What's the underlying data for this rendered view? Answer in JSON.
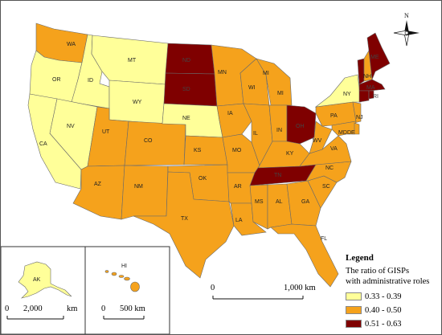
{
  "colors": {
    "low": "#ffff99",
    "mid": "#f5a21c",
    "high": "#7f0000",
    "border": "#6a6a6a"
  },
  "legend": {
    "title": "Legend",
    "subtitle_line1": "The ratio of GISPs",
    "subtitle_line2": "with administrative roles",
    "items": [
      {
        "label": "0.33 - 0.39",
        "class": "low"
      },
      {
        "label": "0.40 - 0.50",
        "class": "mid"
      },
      {
        "label": "0.51 - 0.63",
        "class": "high"
      }
    ]
  },
  "north_arrow": {
    "label": "N"
  },
  "scales": {
    "main": {
      "start": "0",
      "end": "1,000 km"
    },
    "alaska": {
      "start": "0",
      "end": "2,000",
      "unit": "km"
    },
    "hawaii": {
      "start": "0",
      "end": "500 km"
    }
  },
  "states": [
    {
      "abbr": "WA",
      "class": "mid"
    },
    {
      "abbr": "OR",
      "class": "low"
    },
    {
      "abbr": "CA",
      "class": "low"
    },
    {
      "abbr": "ID",
      "class": "low"
    },
    {
      "abbr": "NV",
      "class": "low"
    },
    {
      "abbr": "MT",
      "class": "low"
    },
    {
      "abbr": "WY",
      "class": "low"
    },
    {
      "abbr": "UT",
      "class": "mid"
    },
    {
      "abbr": "CO",
      "class": "mid"
    },
    {
      "abbr": "AZ",
      "class": "mid"
    },
    {
      "abbr": "NM",
      "class": "mid"
    },
    {
      "abbr": "ND",
      "class": "high"
    },
    {
      "abbr": "SD",
      "class": "high"
    },
    {
      "abbr": "NE",
      "class": "low"
    },
    {
      "abbr": "KS",
      "class": "mid"
    },
    {
      "abbr": "OK",
      "class": "mid"
    },
    {
      "abbr": "TX",
      "class": "mid"
    },
    {
      "abbr": "MN",
      "class": "mid"
    },
    {
      "abbr": "IA",
      "class": "mid"
    },
    {
      "abbr": "MO",
      "class": "mid"
    },
    {
      "abbr": "AR",
      "class": "mid"
    },
    {
      "abbr": "LA",
      "class": "mid"
    },
    {
      "abbr": "WI",
      "class": "mid"
    },
    {
      "abbr": "IL",
      "class": "mid"
    },
    {
      "abbr": "MI",
      "class": "mid"
    },
    {
      "abbr": "IN",
      "class": "mid"
    },
    {
      "abbr": "OH",
      "class": "high"
    },
    {
      "abbr": "KY",
      "class": "mid"
    },
    {
      "abbr": "TN",
      "class": "high"
    },
    {
      "abbr": "MS",
      "class": "mid"
    },
    {
      "abbr": "AL",
      "class": "mid"
    },
    {
      "abbr": "GA",
      "class": "mid"
    },
    {
      "abbr": "FL",
      "class": "mid"
    },
    {
      "abbr": "SC",
      "class": "mid"
    },
    {
      "abbr": "NC",
      "class": "mid"
    },
    {
      "abbr": "VA",
      "class": "mid"
    },
    {
      "abbr": "WV",
      "class": "mid"
    },
    {
      "abbr": "PA",
      "class": "mid"
    },
    {
      "abbr": "NY",
      "class": "low"
    },
    {
      "abbr": "NJ",
      "class": "mid"
    },
    {
      "abbr": "MD",
      "class": "mid"
    },
    {
      "abbr": "DE",
      "class": "mid"
    },
    {
      "abbr": "VT",
      "class": "high"
    },
    {
      "abbr": "NH",
      "class": "mid"
    },
    {
      "abbr": "ME",
      "class": "high"
    },
    {
      "abbr": "MA",
      "class": "high"
    },
    {
      "abbr": "CT",
      "class": "high"
    },
    {
      "abbr": "RI",
      "class": "high"
    },
    {
      "abbr": "AK",
      "class": "low"
    },
    {
      "abbr": "HI",
      "class": "mid"
    }
  ]
}
